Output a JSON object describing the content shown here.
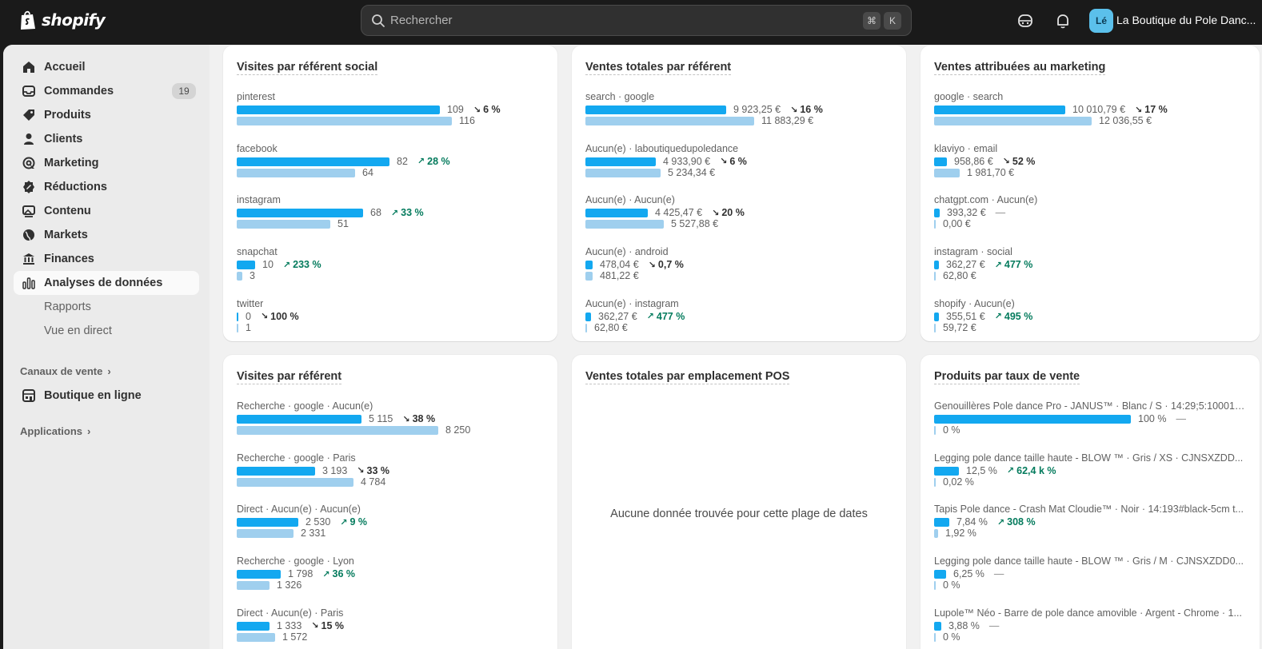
{
  "topbar": {
    "brand": "shopify",
    "search_placeholder": "Rechercher",
    "shortcut_cmd": "⌘",
    "shortcut_key": "K",
    "store_initials": "Lé",
    "store_name": "La Boutique du Pole Danc..."
  },
  "sidebar": {
    "items": [
      {
        "label": "Accueil",
        "icon": "home-icon"
      },
      {
        "label": "Commandes",
        "icon": "inbox-icon",
        "badge": "19"
      },
      {
        "label": "Produits",
        "icon": "tag-icon"
      },
      {
        "label": "Clients",
        "icon": "person-icon"
      },
      {
        "label": "Marketing",
        "icon": "target-icon"
      },
      {
        "label": "Réductions",
        "icon": "discount-icon"
      },
      {
        "label": "Contenu",
        "icon": "image-icon"
      },
      {
        "label": "Markets",
        "icon": "globe-icon"
      },
      {
        "label": "Finances",
        "icon": "bank-icon"
      },
      {
        "label": "Analyses de données",
        "icon": "bar-chart-icon"
      }
    ],
    "sub_items": [
      "Rapports",
      "Vue en direct"
    ],
    "sales_channels_title": "Canaux de vente",
    "online_store": "Boutique en ligne",
    "apps_title": "Applications"
  },
  "cards": {
    "social_visits": {
      "title": "Visites par référent social",
      "rows": [
        {
          "label": "pinterest",
          "cur": "109",
          "prev": "116",
          "change": "6 %",
          "dir": "down",
          "cur_frac": 0.65,
          "prev_frac": 0.69
        },
        {
          "label": "facebook",
          "cur": "82",
          "prev": "64",
          "change": "28 %",
          "dir": "up",
          "cur_frac": 0.49,
          "prev_frac": 0.38
        },
        {
          "label": "instagram",
          "cur": "68",
          "prev": "51",
          "change": "33 %",
          "dir": "up",
          "cur_frac": 0.405,
          "prev_frac": 0.3
        },
        {
          "label": "snapchat",
          "cur": "10",
          "prev": "3",
          "change": "233 %",
          "dir": "up",
          "cur_frac": 0.06,
          "prev_frac": 0.018
        },
        {
          "label": "twitter",
          "cur": "0",
          "prev": "1",
          "change": "100 %",
          "dir": "down",
          "cur_frac": 0.0,
          "prev_frac": 0.006
        }
      ]
    },
    "sales_by_referrer": {
      "title": "Ventes totales par référent",
      "rows": [
        {
          "label": "search · google",
          "cur": "9 923,25 €",
          "prev": "11 883,29 €",
          "change": "16 %",
          "dir": "down",
          "cur_frac": 0.45,
          "prev_frac": 0.54
        },
        {
          "label": "Aucun(e) · laboutiquedupoledance",
          "cur": "4 933,90 €",
          "prev": "5 234,34 €",
          "change": "6 %",
          "dir": "down",
          "cur_frac": 0.225,
          "prev_frac": 0.24
        },
        {
          "label": "Aucun(e) · Aucun(e)",
          "cur": "4 425,47 €",
          "prev": "5 527,88 €",
          "change": "20 %",
          "dir": "down",
          "cur_frac": 0.2,
          "prev_frac": 0.25
        },
        {
          "label": "Aucun(e) · android",
          "cur": "478,04 €",
          "prev": "481,22 €",
          "change": "0,7 %",
          "dir": "down",
          "cur_frac": 0.022,
          "prev_frac": 0.022
        },
        {
          "label": "Aucun(e) · instagram",
          "cur": "362,27 €",
          "prev": "62,80 €",
          "change": "477 %",
          "dir": "up",
          "cur_frac": 0.017,
          "prev_frac": 0.003
        }
      ]
    },
    "marketing_sales": {
      "title": "Ventes attribuées au marketing",
      "rows": [
        {
          "label": "google · search",
          "cur": "10 010,79 €",
          "prev": "12 036,55 €",
          "change": "17 %",
          "dir": "down",
          "cur_frac": 0.42,
          "prev_frac": 0.505
        },
        {
          "label": "klaviyo · email",
          "cur": "958,86 €",
          "prev": "1 981,70 €",
          "change": "52 %",
          "dir": "down",
          "cur_frac": 0.04,
          "prev_frac": 0.083
        },
        {
          "label": "chatgpt.com · Aucun(e)",
          "cur": "393,32 €",
          "prev": "0,00 €",
          "change": "—",
          "dir": "none",
          "cur_frac": 0.017,
          "prev_frac": 0.0
        },
        {
          "label": "instagram · social",
          "cur": "362,27 €",
          "prev": "62,80 €",
          "change": "477 %",
          "dir": "up",
          "cur_frac": 0.015,
          "prev_frac": 0.003
        },
        {
          "label": "shopify · Aucun(e)",
          "cur": "355,51 €",
          "prev": "59,72 €",
          "change": "495 %",
          "dir": "up",
          "cur_frac": 0.015,
          "prev_frac": 0.003
        }
      ]
    },
    "referrer_visits": {
      "title": "Visites par référent",
      "rows": [
        {
          "label": "Recherche · google · Aucun(e)",
          "cur": "5 115",
          "prev": "8 250",
          "change": "38 %",
          "dir": "down",
          "cur_frac": 0.4,
          "prev_frac": 0.645
        },
        {
          "label": "Recherche · google · Paris",
          "cur": "3 193",
          "prev": "4 784",
          "change": "33 %",
          "dir": "down",
          "cur_frac": 0.25,
          "prev_frac": 0.374
        },
        {
          "label": "Direct · Aucun(e) · Aucun(e)",
          "cur": "2 530",
          "prev": "2 331",
          "change": "9 %",
          "dir": "up",
          "cur_frac": 0.198,
          "prev_frac": 0.182
        },
        {
          "label": "Recherche · google · Lyon",
          "cur": "1 798",
          "prev": "1 326",
          "change": "36 %",
          "dir": "up",
          "cur_frac": 0.141,
          "prev_frac": 0.104
        },
        {
          "label": "Direct · Aucun(e) · Paris",
          "cur": "1 333",
          "prev": "1 572",
          "change": "15 %",
          "dir": "down",
          "cur_frac": 0.104,
          "prev_frac": 0.123
        }
      ]
    },
    "pos_sales": {
      "title": "Ventes totales par emplacement POS",
      "empty": "Aucune donnée trouvée pour cette plage de dates"
    },
    "product_sell_rate": {
      "title": "Produits par taux de vente",
      "rows": [
        {
          "label": "Genouillères Pole dance Pro - JANUS™ · Blanc / S · 14:29;5:100014...",
          "cur": "100 %",
          "prev": "0 %",
          "change": "—",
          "dir": "none",
          "cur_frac": 0.63,
          "prev_frac": 0.0
        },
        {
          "label": "Legging pole dance taille haute - BLOW ™ · Gris / XS · CJNSXZDD...",
          "cur": "12,5 %",
          "prev": "0,02 %",
          "change": "62,4 k %",
          "dir": "up",
          "cur_frac": 0.079,
          "prev_frac": 0.0
        },
        {
          "label": "Tapis Pole dance - Crash Mat Cloudie™ · Noir · 14:193#black-5cm t...",
          "cur": "7,84 %",
          "prev": "1,92 %",
          "change": "308 %",
          "dir": "up",
          "cur_frac": 0.049,
          "prev_frac": 0.012
        },
        {
          "label": "Legging pole dance taille haute - BLOW ™ · Gris / M · CJNSXZDD0...",
          "cur": "6,25 %",
          "prev": "0 %",
          "change": "—",
          "dir": "none",
          "cur_frac": 0.039,
          "prev_frac": 0.0
        },
        {
          "label": "Lupole™ Néo - Barre de pole dance amovible · Argent - Chrome · 1...",
          "cur": "3,88 %",
          "prev": "0 %",
          "change": "—",
          "dir": "none",
          "cur_frac": 0.024,
          "prev_frac": 0.0
        }
      ]
    }
  },
  "colors": {
    "bar_current": "#13a8f0",
    "bar_previous": "#9fcfee",
    "positive": "#047b5d"
  }
}
